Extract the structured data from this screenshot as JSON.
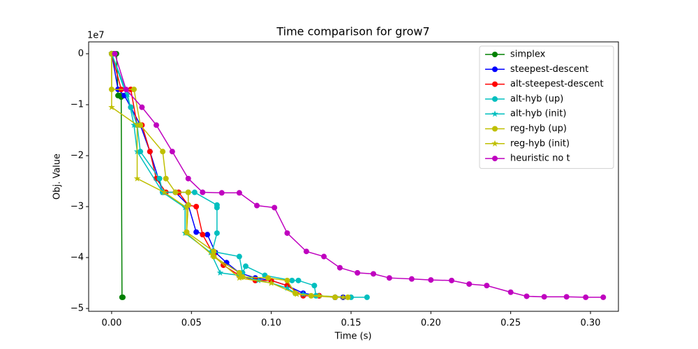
{
  "chart_data": {
    "type": "line",
    "title": "Time comparison for grow7",
    "x_label": "Time (s)",
    "y_label": "Obj. Value",
    "y_offset_label": "1e7",
    "xlim": [
      -0.0144,
      0.3175
    ],
    "ylim": [
      -5.055,
      0.233
    ],
    "xticks": [
      {
        "value": 0,
        "label": "0.00"
      },
      {
        "value": 0.05,
        "label": "0.05"
      },
      {
        "value": 0.1,
        "label": "0.10"
      },
      {
        "value": 0.15,
        "label": "0.15"
      },
      {
        "value": 0.2,
        "label": "0.20"
      },
      {
        "value": 0.25,
        "label": "0.25"
      },
      {
        "value": 0.3,
        "label": "0.30"
      }
    ],
    "yticks": [
      {
        "value": -5,
        "label": "−5"
      },
      {
        "value": -4,
        "label": "−4"
      },
      {
        "value": -3,
        "label": "−3"
      },
      {
        "value": -2,
        "label": "−2"
      },
      {
        "value": -1,
        "label": "−1"
      },
      0
    ],
    "legend": "upper right",
    "series": [
      {
        "name": "simplex",
        "color": "#008000",
        "marker": "o",
        "x": [
          0.0,
          0.001,
          0.002,
          0.003,
          0.004,
          0.005,
          0.006,
          0.0065,
          0.007
        ],
        "values": [
          0,
          0,
          0,
          0,
          -0.82,
          -0.82,
          -0.85,
          -4.78,
          -4.78
        ]
      },
      {
        "name": "steepest-descent",
        "color": "#0000ff",
        "marker": "o",
        "x": [
          0,
          0.004,
          0.008,
          0.012,
          0.018,
          0.024,
          0.032,
          0.04,
          0.048,
          0.053,
          0.06,
          0.065,
          0.072,
          0.08,
          0.09,
          0.1,
          0.11,
          0.12,
          0.13,
          0.14,
          0.145
        ],
        "values": [
          0,
          -0.7,
          -0.82,
          -1.05,
          -1.4,
          -1.92,
          -2.72,
          -2.72,
          -2.97,
          -3.5,
          -3.55,
          -3.9,
          -4.1,
          -4.3,
          -4.4,
          -4.45,
          -4.55,
          -4.7,
          -4.75,
          -4.78,
          -4.78
        ]
      },
      {
        "name": "alt-steepest-descent",
        "color": "#ff0000",
        "marker": "o",
        "x": [
          0,
          0.006,
          0.012,
          0.016,
          0.019,
          0.024,
          0.028,
          0.034,
          0.042,
          0.048,
          0.053,
          0.057,
          0.064,
          0.07,
          0.08,
          0.09,
          0.1,
          0.11,
          0.12,
          0.13,
          0.14
        ],
        "values": [
          0,
          -0.7,
          -0.7,
          -1.4,
          -1.4,
          -1.92,
          -2.45,
          -2.72,
          -2.72,
          -2.97,
          -3.0,
          -3.55,
          -3.95,
          -4.15,
          -4.35,
          -4.45,
          -4.45,
          -4.55,
          -4.75,
          -4.75,
          -4.78
        ]
      },
      {
        "name": "alt-hyb (up)",
        "color": "#00bfbf",
        "marker": "o",
        "x": [
          0,
          0.012,
          0.016,
          0.018,
          0.03,
          0.032,
          0.048,
          0.052,
          0.066,
          0.066,
          0.066,
          0.063,
          0.08,
          0.082,
          0.084,
          0.096,
          0.113,
          0.117,
          0.127,
          0.128,
          0.15,
          0.16
        ],
        "values": [
          0,
          -1.05,
          -1.4,
          -1.92,
          -2.45,
          -2.72,
          -2.72,
          -2.72,
          -2.97,
          -3.02,
          -3.52,
          -3.88,
          -3.98,
          -4.3,
          -4.17,
          -4.35,
          -4.45,
          -4.45,
          -4.55,
          -4.75,
          -4.78,
          -4.78
        ]
      },
      {
        "name": "alt-hyb (init)",
        "color": "#00bfbf",
        "marker": "*",
        "x": [
          0,
          0.01,
          0.014,
          0.016,
          0.032,
          0.046,
          0.046,
          0.062,
          0.068,
          0.08,
          0.092,
          0.1,
          0.11,
          0.115,
          0.12,
          0.13,
          0.14
        ],
        "values": [
          0,
          -0.8,
          -1.4,
          -1.92,
          -2.72,
          -3.02,
          -3.52,
          -3.9,
          -4.3,
          -4.35,
          -4.45,
          -4.5,
          -4.6,
          -4.7,
          -4.72,
          -4.75,
          -4.78
        ]
      },
      {
        "name": "reg-hyb (up)",
        "color": "#bfbf00",
        "marker": "o",
        "x": [
          0,
          0.0,
          0.014,
          0.018,
          0.018,
          0.032,
          0.034,
          0.04,
          0.048,
          0.048,
          0.047,
          0.064,
          0.064,
          0.08,
          0.082,
          0.098,
          0.11,
          0.115,
          0.125,
          0.14,
          0.148
        ],
        "values": [
          0,
          -0.7,
          -0.7,
          -1.4,
          -1.4,
          -1.92,
          -2.45,
          -2.72,
          -2.72,
          -2.97,
          -3.5,
          -3.88,
          -3.98,
          -4.3,
          -4.38,
          -4.4,
          -4.45,
          -4.7,
          -4.75,
          -4.78,
          -4.78
        ]
      },
      {
        "name": "reg-hyb (init)",
        "color": "#bfbf00",
        "marker": "*",
        "x": [
          0,
          0.0,
          0.016,
          0.016,
          0.033,
          0.047,
          0.047,
          0.063,
          0.08,
          0.1,
          0.116,
          0.13,
          0.145
        ],
        "values": [
          0,
          -1.05,
          -1.4,
          -2.45,
          -2.72,
          -3.02,
          -3.52,
          -3.95,
          -4.4,
          -4.5,
          -4.72,
          -4.75,
          -4.78
        ]
      },
      {
        "name": "heuristic no t",
        "color": "#bf00bf",
        "marker": "o",
        "x": [
          0.002,
          0.009,
          0.019,
          0.028,
          0.038,
          0.048,
          0.057,
          0.069,
          0.08,
          0.091,
          0.102,
          0.11,
          0.122,
          0.133,
          0.143,
          0.154,
          0.164,
          0.174,
          0.188,
          0.2,
          0.213,
          0.224,
          0.235,
          0.25,
          0.26,
          0.271,
          0.285,
          0.297,
          0.308
        ],
        "values": [
          0,
          -0.7,
          -1.05,
          -1.4,
          -1.92,
          -2.45,
          -2.72,
          -2.73,
          -2.73,
          -2.98,
          -3.02,
          -3.52,
          -3.88,
          -3.98,
          -4.2,
          -4.3,
          -4.32,
          -4.4,
          -4.42,
          -4.44,
          -4.45,
          -4.52,
          -4.55,
          -4.68,
          -4.76,
          -4.77,
          -4.77,
          -4.78,
          -4.78
        ]
      }
    ]
  }
}
